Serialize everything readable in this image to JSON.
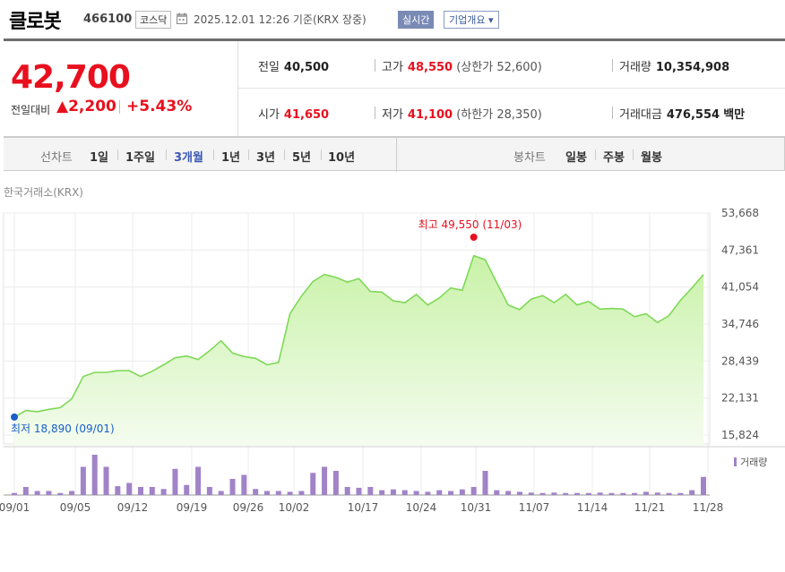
{
  "header": {
    "name": "클로봇",
    "code": "466100",
    "market": "코스닥",
    "asof": "2025.12.01 12:26  기준(KRX 장중)",
    "realtime_label": "실시간",
    "overview_label": "기업개요 ▾"
  },
  "quote": {
    "price": "42,700",
    "change_label": "전일대비",
    "change_amount": "▲2,200",
    "change_percent": "+5.43%",
    "prev_close_label": "전일",
    "prev_close": "40,500",
    "high_label": "고가",
    "high": "48,550",
    "upper_limit": "(상한가 52,600)",
    "volume_label": "거래량",
    "volume": "10,354,908",
    "open_label": "시가",
    "open": "41,650",
    "low_label": "저가",
    "low": "41,100",
    "lower_limit": "(하한가 28,350)",
    "trade_value_label": "거래대금",
    "trade_value": "476,554",
    "trade_value_unit": "백만"
  },
  "tabs": {
    "line_label": "선차트",
    "line_items": [
      "1일",
      "1주일",
      "3개월",
      "1년",
      "3년",
      "5년",
      "10년"
    ],
    "active": "3개월",
    "candle_label": "봉차트",
    "candle_items": [
      "일봉",
      "주봉",
      "월봉"
    ]
  },
  "source_label": "한국거래소(KRX)",
  "colors": {
    "up": "#e8101e",
    "down": "#1a5fc8",
    "line": "#7ed957",
    "volume": "#a183c8",
    "active_tab": "#3c5ab4"
  },
  "chart_data": {
    "type": "area",
    "ylim": [
      15824,
      53668
    ],
    "yticks": [
      "53,668",
      "47,361",
      "41,054",
      "34,746",
      "28,439",
      "22,131",
      "15,824"
    ],
    "xticks": [
      "09/01",
      "09/05",
      "09/12",
      "09/19",
      "09/26",
      "10/02",
      "10/17",
      "10/24",
      "10/31",
      "11/07",
      "11/14",
      "11/21",
      "11/28"
    ],
    "high_annotation": "최고 49,550 (11/03)",
    "low_annotation": "최저 18,890 (09/01)",
    "high_value": 49550,
    "low_value": 18890,
    "price_series": [
      18890,
      20000,
      19800,
      20200,
      20500,
      22000,
      25800,
      26500,
      26500,
      26800,
      26800,
      25800,
      26700,
      27800,
      29000,
      29300,
      28700,
      30200,
      31900,
      29800,
      29200,
      28900,
      27800,
      28200,
      36500,
      39500,
      42000,
      43200,
      42700,
      41900,
      42500,
      40300,
      40200,
      38700,
      38400,
      39800,
      38000,
      39200,
      40900,
      40500,
      46400,
      45700,
      41800,
      38000,
      37200,
      39000,
      39600,
      38400,
      39800,
      38000,
      38600,
      37300,
      37400,
      37300,
      36000,
      36500,
      35000,
      36200,
      38800,
      40900,
      43200
    ],
    "volume_legend": "거래량",
    "volume_series": [
      0.05,
      0.2,
      0.1,
      0.1,
      0.05,
      0.1,
      0.7,
      1.0,
      0.7,
      0.22,
      0.3,
      0.2,
      0.2,
      0.15,
      0.65,
      0.25,
      0.7,
      0.2,
      0.1,
      0.4,
      0.5,
      0.15,
      0.1,
      0.1,
      0.08,
      0.1,
      0.55,
      0.7,
      0.6,
      0.2,
      0.18,
      0.2,
      0.12,
      0.14,
      0.12,
      0.1,
      0.08,
      0.12,
      0.1,
      0.14,
      0.2,
      0.6,
      0.12,
      0.1,
      0.08,
      0.06,
      0.05,
      0.06,
      0.05,
      0.05,
      0.05,
      0.06,
      0.05,
      0.05,
      0.05,
      0.08,
      0.06,
      0.05,
      0.05,
      0.12,
      0.45
    ]
  }
}
